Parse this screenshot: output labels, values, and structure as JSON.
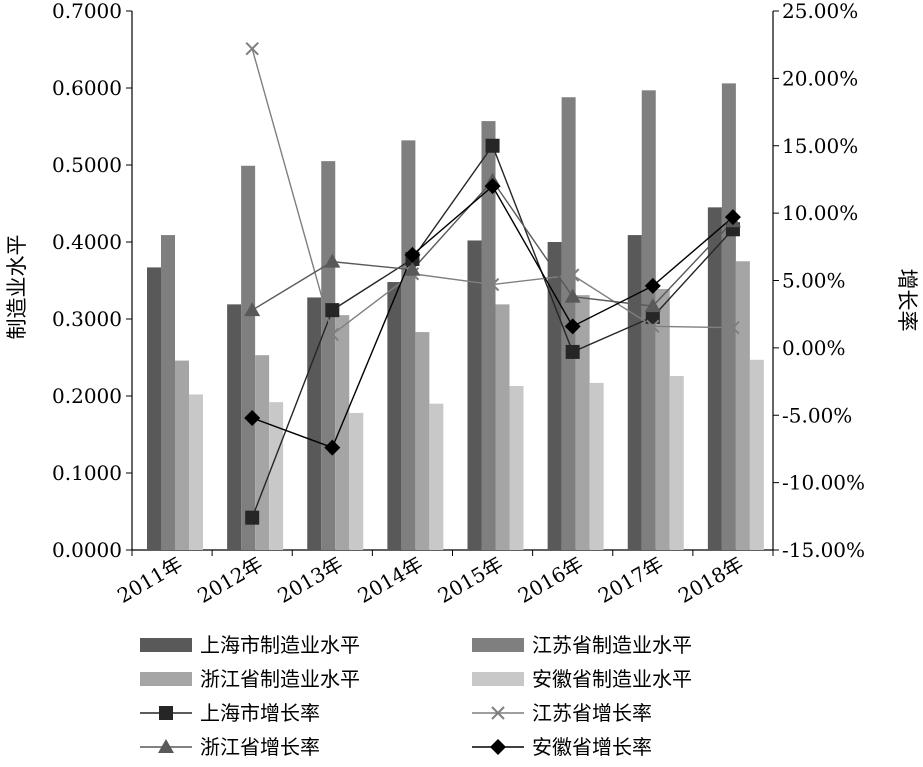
{
  "chart_data": {
    "type": "bar",
    "title": "",
    "categories": [
      "2011年",
      "2012年",
      "2013年",
      "2014年",
      "2015年",
      "2016年",
      "2017年",
      "2018年"
    ],
    "ylabel": "制造业水平",
    "y2label": "增长率",
    "ylim": [
      0,
      0.7
    ],
    "y2lim": [
      -0.15,
      0.25
    ],
    "yticks": [
      "0.0000",
      "0.1000",
      "0.2000",
      "0.3000",
      "0.4000",
      "0.5000",
      "0.6000",
      "0.7000"
    ],
    "y2ticks": [
      "-15.00%",
      "-10.00%",
      "-5.00%",
      "0.00%",
      "5.00%",
      "10.00%",
      "15.00%",
      "20.00%",
      "25.00%"
    ],
    "grid": false,
    "legend_position": "bottom",
    "bar_series": [
      {
        "name": "上海市制造业水平",
        "color": "#595959",
        "values": [
          0.367,
          0.319,
          0.328,
          0.348,
          0.402,
          0.4,
          0.409,
          0.445
        ]
      },
      {
        "name": "江苏省制造业水平",
        "color": "#7f7f7f",
        "values": [
          0.409,
          0.499,
          0.505,
          0.532,
          0.557,
          0.588,
          0.597,
          0.606
        ]
      },
      {
        "name": "浙江省制造业水平",
        "color": "#a5a5a5",
        "values": [
          0.246,
          0.253,
          0.305,
          0.283,
          0.319,
          0.331,
          0.339,
          0.375
        ]
      },
      {
        "name": "安徽省制造业水平",
        "color": "#c8c8c8",
        "values": [
          0.202,
          0.192,
          0.178,
          0.19,
          0.213,
          0.217,
          0.226,
          0.247
        ]
      }
    ],
    "line_series": [
      {
        "name": "上海市增长率",
        "marker": "square",
        "color": "#262626",
        "values": [
          null,
          -0.126,
          0.028,
          0.066,
          0.15,
          -0.003,
          0.023,
          0.088
        ]
      },
      {
        "name": "江苏省增长率",
        "marker": "x",
        "color": "#7f7f7f",
        "values": [
          null,
          0.222,
          0.01,
          0.055,
          0.047,
          0.054,
          0.016,
          0.015
        ]
      },
      {
        "name": "浙江省增长率",
        "marker": "triangle",
        "color": "#595959",
        "values": [
          null,
          0.028,
          0.064,
          0.058,
          0.124,
          0.038,
          0.031,
          0.094
        ]
      },
      {
        "name": "安徽省增长率",
        "marker": "diamond",
        "color": "#000000",
        "values": [
          null,
          -0.052,
          -0.074,
          0.069,
          0.12,
          0.016,
          0.046,
          0.097
        ]
      }
    ]
  }
}
